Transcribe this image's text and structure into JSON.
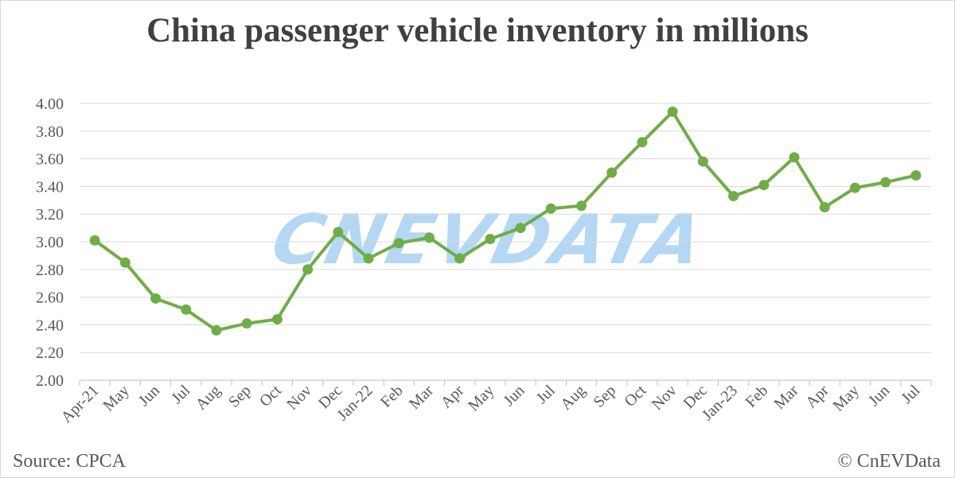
{
  "chart_data": {
    "type": "line",
    "title": "China passenger vehicle inventory in millions",
    "categories": [
      "Apr-21",
      "May",
      "Jun",
      "Jul",
      "Aug",
      "Sep",
      "Oct",
      "Nov",
      "Dec",
      "Jan-22",
      "Feb",
      "Mar",
      "Apr",
      "May",
      "Jun",
      "Jul",
      "Aug",
      "Sep",
      "Oct",
      "Nov",
      "Dec",
      "Jan-23",
      "Feb",
      "Mar",
      "Apr",
      "May",
      "Jun",
      "Jul"
    ],
    "series": [
      {
        "values": [
          3.01,
          2.85,
          2.59,
          2.51,
          2.36,
          2.41,
          2.44,
          2.8,
          3.07,
          2.88,
          2.99,
          3.03,
          2.88,
          3.02,
          3.1,
          3.24,
          3.26,
          3.5,
          3.72,
          3.94,
          3.58,
          3.33,
          3.41,
          3.61,
          3.25,
          3.39,
          3.43,
          3.48
        ]
      }
    ],
    "ylim": [
      2.0,
      4.0
    ],
    "yticks": [
      "2.00",
      "2.20",
      "2.40",
      "2.60",
      "2.80",
      "3.00",
      "3.20",
      "3.40",
      "3.60",
      "3.80",
      "4.00"
    ],
    "xlabel": "",
    "ylabel": "",
    "grid": true,
    "legend": "none",
    "line_color": "#70ad47"
  },
  "source": "Source: CPCA",
  "credit": "© CnEVData",
  "watermark": "CNEVDATA"
}
